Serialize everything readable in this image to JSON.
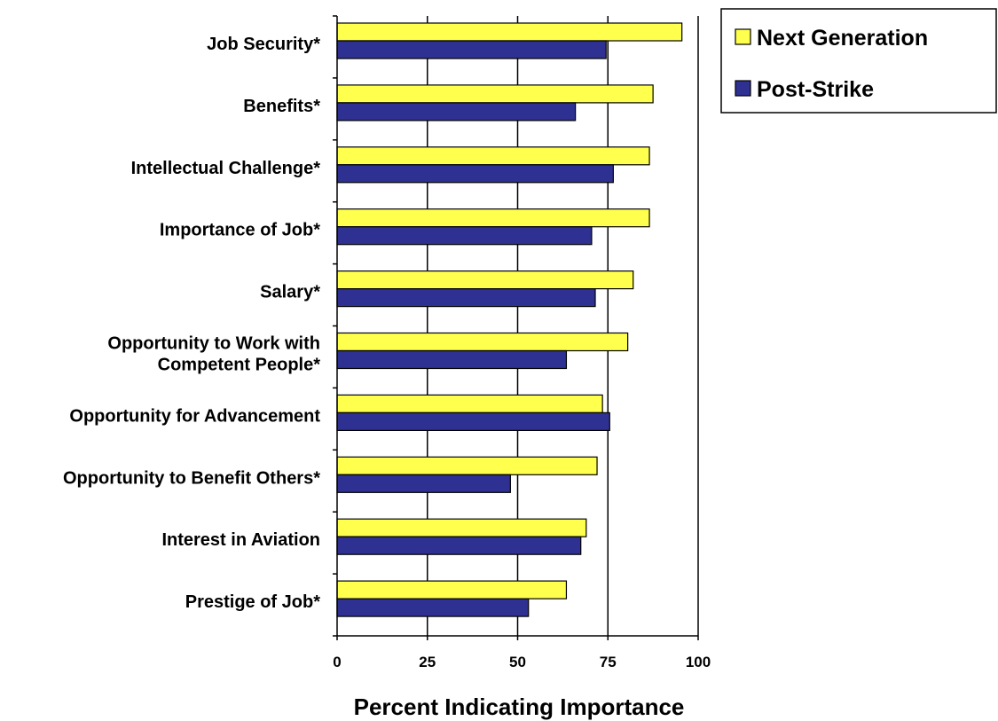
{
  "chart_data": {
    "type": "bar",
    "orientation": "horizontal",
    "categories": [
      [
        "Job Security*"
      ],
      [
        "Benefits*"
      ],
      [
        "Intellectual Challenge*"
      ],
      [
        "Importance of Job*"
      ],
      [
        "Salary*"
      ],
      [
        "Opportunity to Work with",
        "Competent People*"
      ],
      [
        "Opportunity for Advancement"
      ],
      [
        "Opportunity to Benefit Others*"
      ],
      [
        "Interest in Aviation"
      ],
      [
        "Prestige of Job*"
      ]
    ],
    "series": [
      {
        "name": "Next Generation",
        "color": "#ffff4d",
        "values": [
          95.5,
          87.5,
          86.5,
          86.5,
          82,
          80.5,
          73.5,
          72,
          69,
          63.5
        ]
      },
      {
        "name": "Post-Strike",
        "color": "#2e3192",
        "values": [
          74.5,
          66,
          76.5,
          70.5,
          71.5,
          63.5,
          75.5,
          48,
          67.5,
          53
        ]
      }
    ],
    "xlabel": "Percent Indicating Importance",
    "xlim": [
      0,
      100
    ],
    "xticks": [
      "0",
      "25",
      "50",
      "75",
      "100"
    ],
    "grid": "vertical",
    "legend_position": "top-right"
  }
}
